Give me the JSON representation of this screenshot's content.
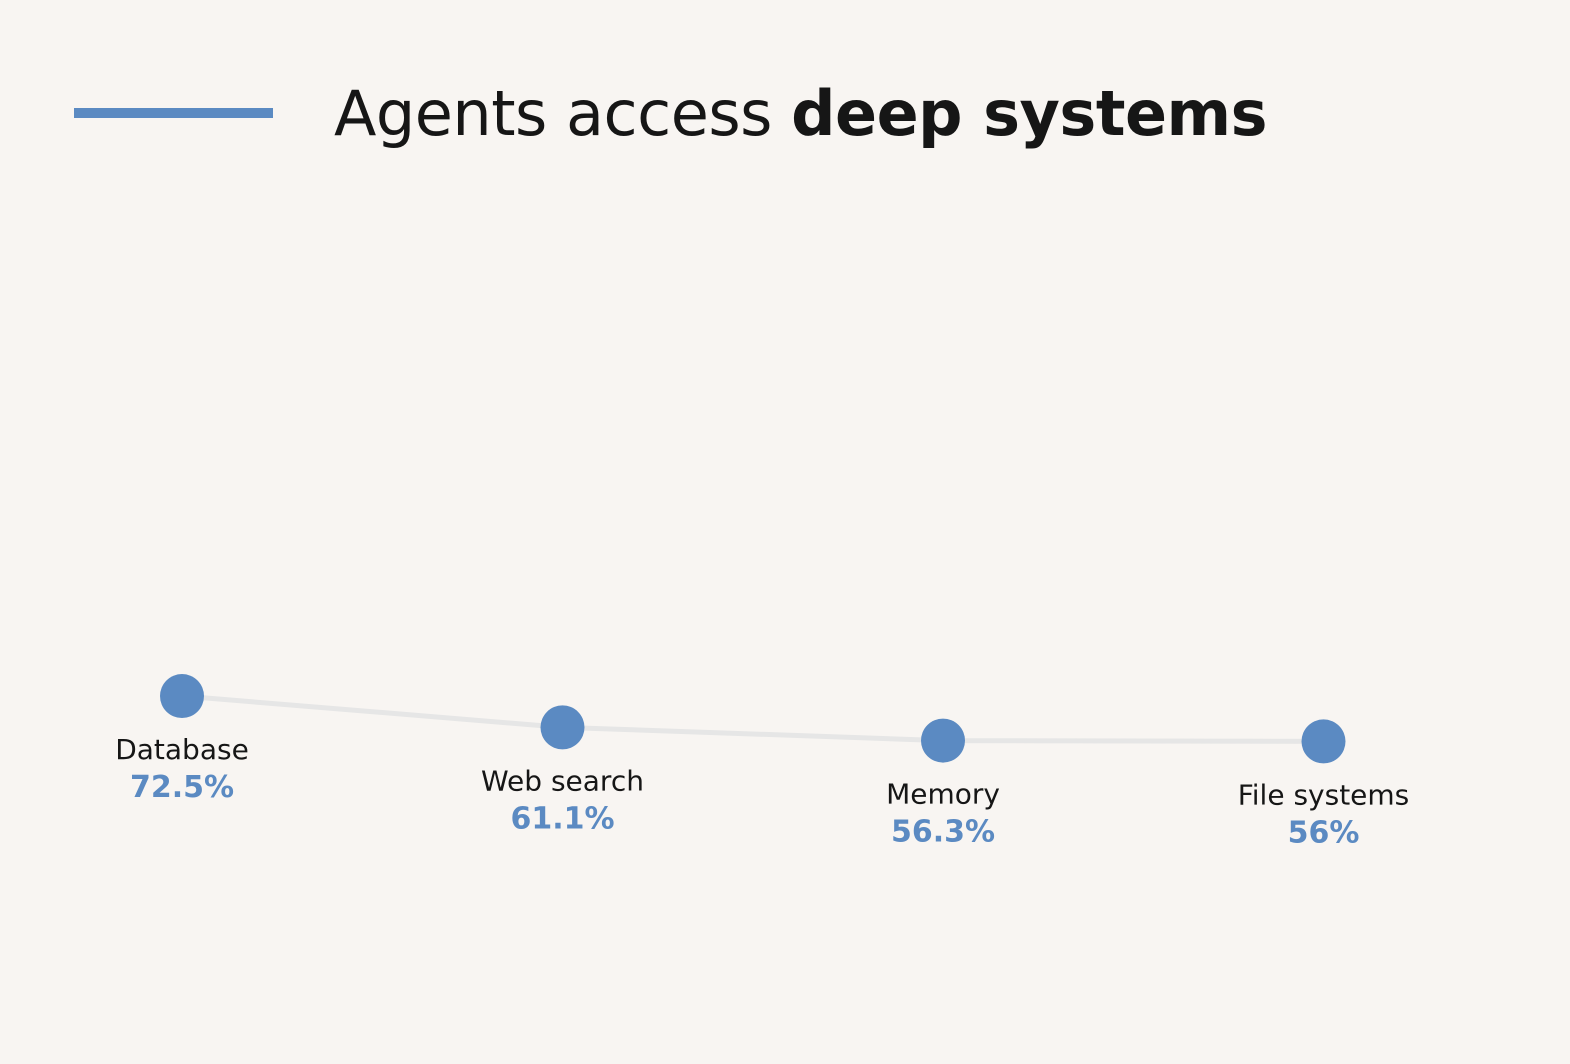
{
  "title": {
    "regular": "Agents access ",
    "bold": "deep systems"
  },
  "colors": {
    "accent": "#5b8ac2",
    "line": "#e6e6e6",
    "background": "#f8f5f2",
    "text": "#161616"
  },
  "chart_data": {
    "type": "line",
    "title": "Agents access deep systems",
    "categories": [
      "Database",
      "Web search",
      "Memory",
      "File systems"
    ],
    "values": [
      72.5,
      61.1,
      56.3,
      56
    ],
    "value_labels": [
      "72.5%",
      "61.1%",
      "56.3%",
      "56%"
    ],
    "unit": "%",
    "grid": false,
    "legend": "none"
  }
}
